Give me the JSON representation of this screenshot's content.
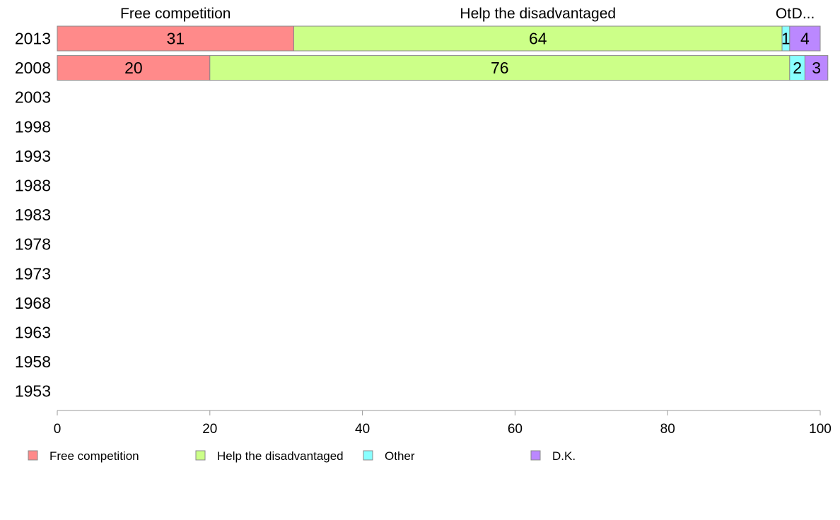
{
  "chart_data": {
    "type": "bar",
    "orientation": "horizontal",
    "stacked": true,
    "categories": [
      "2013",
      "2008",
      "2003",
      "1998",
      "1993",
      "1988",
      "1983",
      "1978",
      "1973",
      "1968",
      "1963",
      "1958",
      "1953"
    ],
    "series": [
      {
        "name": "Free competition",
        "color": "#ff8a8a",
        "values": [
          31,
          20,
          null,
          null,
          null,
          null,
          null,
          null,
          null,
          null,
          null,
          null,
          null
        ]
      },
      {
        "name": "Help the disadvantaged",
        "color": "#ccff88",
        "values": [
          64,
          76,
          null,
          null,
          null,
          null,
          null,
          null,
          null,
          null,
          null,
          null,
          null
        ]
      },
      {
        "name": "Other",
        "color": "#88ffff",
        "values": [
          1,
          2,
          null,
          null,
          null,
          null,
          null,
          null,
          null,
          null,
          null,
          null,
          null
        ]
      },
      {
        "name": "D.K.",
        "color": "#bb88ff",
        "values": [
          4,
          3,
          null,
          null,
          null,
          null,
          null,
          null,
          null,
          null,
          null,
          null,
          null
        ]
      }
    ],
    "column_headers": [
      "Free competition",
      "Help the disadvantaged",
      "Ot",
      "D..."
    ],
    "x_ticks": [
      "0",
      "20",
      "40",
      "60",
      "80",
      "100"
    ],
    "xlim": [
      0,
      100
    ],
    "grid": false,
    "legend_position": "bottom"
  }
}
